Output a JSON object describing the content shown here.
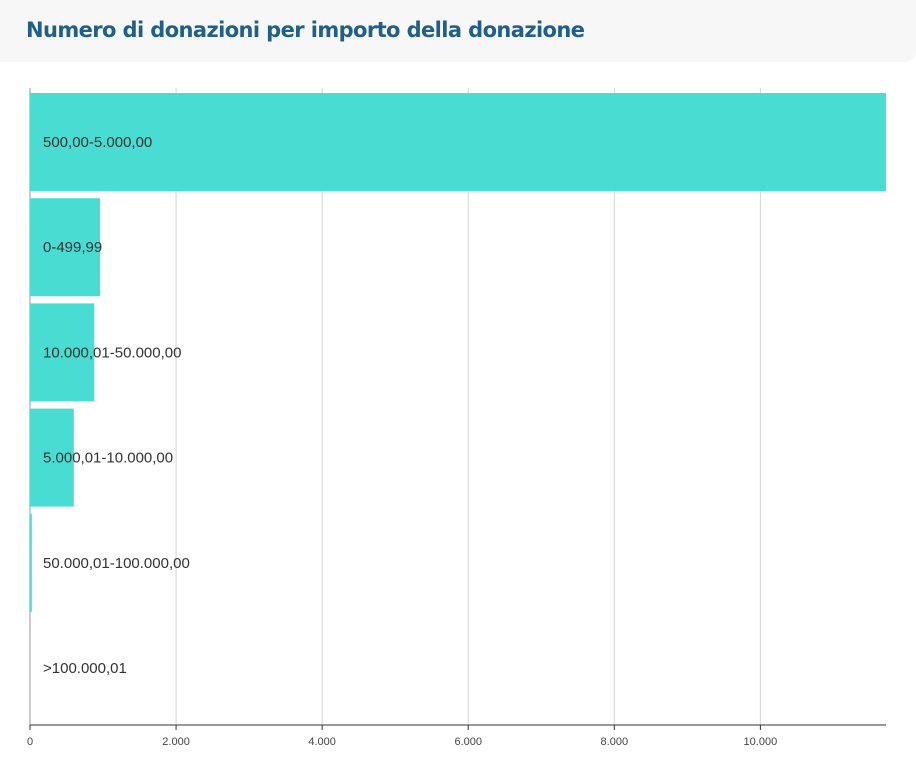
{
  "chart_data": {
    "type": "bar",
    "orientation": "horizontal",
    "title": "Numero di donazioni per importo della donazione",
    "categories": [
      "500,00-5.000,00",
      "0-499,99",
      "10.000,01-50.000,00",
      "5.000,01-10.000,00",
      "50.000,01-100.000,00",
      ">100.000,01"
    ],
    "values": [
      11720,
      960,
      880,
      600,
      25,
      0
    ],
    "xlim": [
      0,
      11720
    ],
    "xticks": [
      0,
      2000,
      4000,
      6000,
      8000,
      10000
    ],
    "xtick_labels": [
      "0",
      "2.000",
      "4.000",
      "6.000",
      "8.000",
      "10.000"
    ],
    "grid": true,
    "bar_color": "#48dcd2",
    "title_color": "#1f5f88"
  }
}
